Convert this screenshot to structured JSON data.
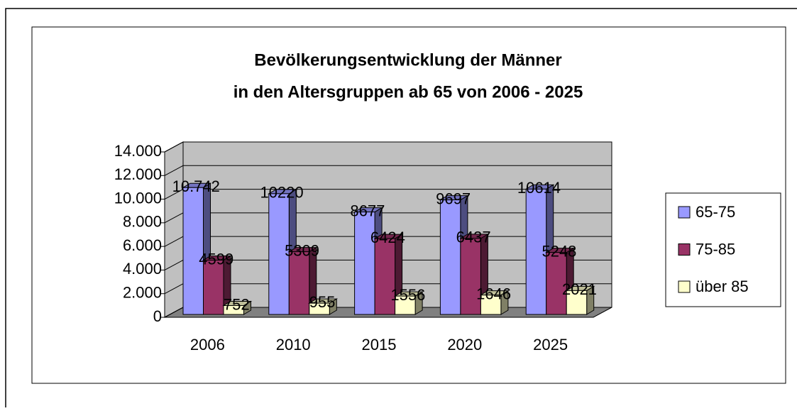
{
  "chart_data": {
    "type": "bar3d",
    "title": "Bevölkerungsentwicklung der Männer",
    "subtitle": "in den Altersgruppen ab 65 von 2006 - 2025",
    "categories": [
      "2006",
      "2010",
      "2015",
      "2020",
      "2025"
    ],
    "series": [
      {
        "name": "65-75",
        "color": "#9999ff",
        "values": [
          10742,
          10220,
          8677,
          9697,
          10614
        ],
        "value_labels": [
          "10.742",
          "10220",
          "8677",
          "9697",
          "10614"
        ]
      },
      {
        "name": "75-85",
        "color": "#993366",
        "values": [
          4599,
          5309,
          6424,
          6437,
          5248
        ]
      },
      {
        "name": "über 85",
        "color": "#ffffcc",
        "values": [
          752,
          955,
          1556,
          1646,
          2021
        ]
      }
    ],
    "ylim": [
      0,
      14000
    ],
    "yticks": [
      0,
      {
        "value": 2000,
        "label": "2.000"
      },
      {
        "value": 4000,
        "label": "4.000"
      },
      {
        "value": 6000,
        "label": "6.000"
      },
      {
        "value": 8000,
        "label": "8.000"
      },
      {
        "value": 10000,
        "label": "10.000"
      },
      {
        "value": 12000,
        "label": "12.000"
      },
      {
        "value": 14000,
        "label": "14.000"
      }
    ],
    "grid": true,
    "legend": "right"
  }
}
